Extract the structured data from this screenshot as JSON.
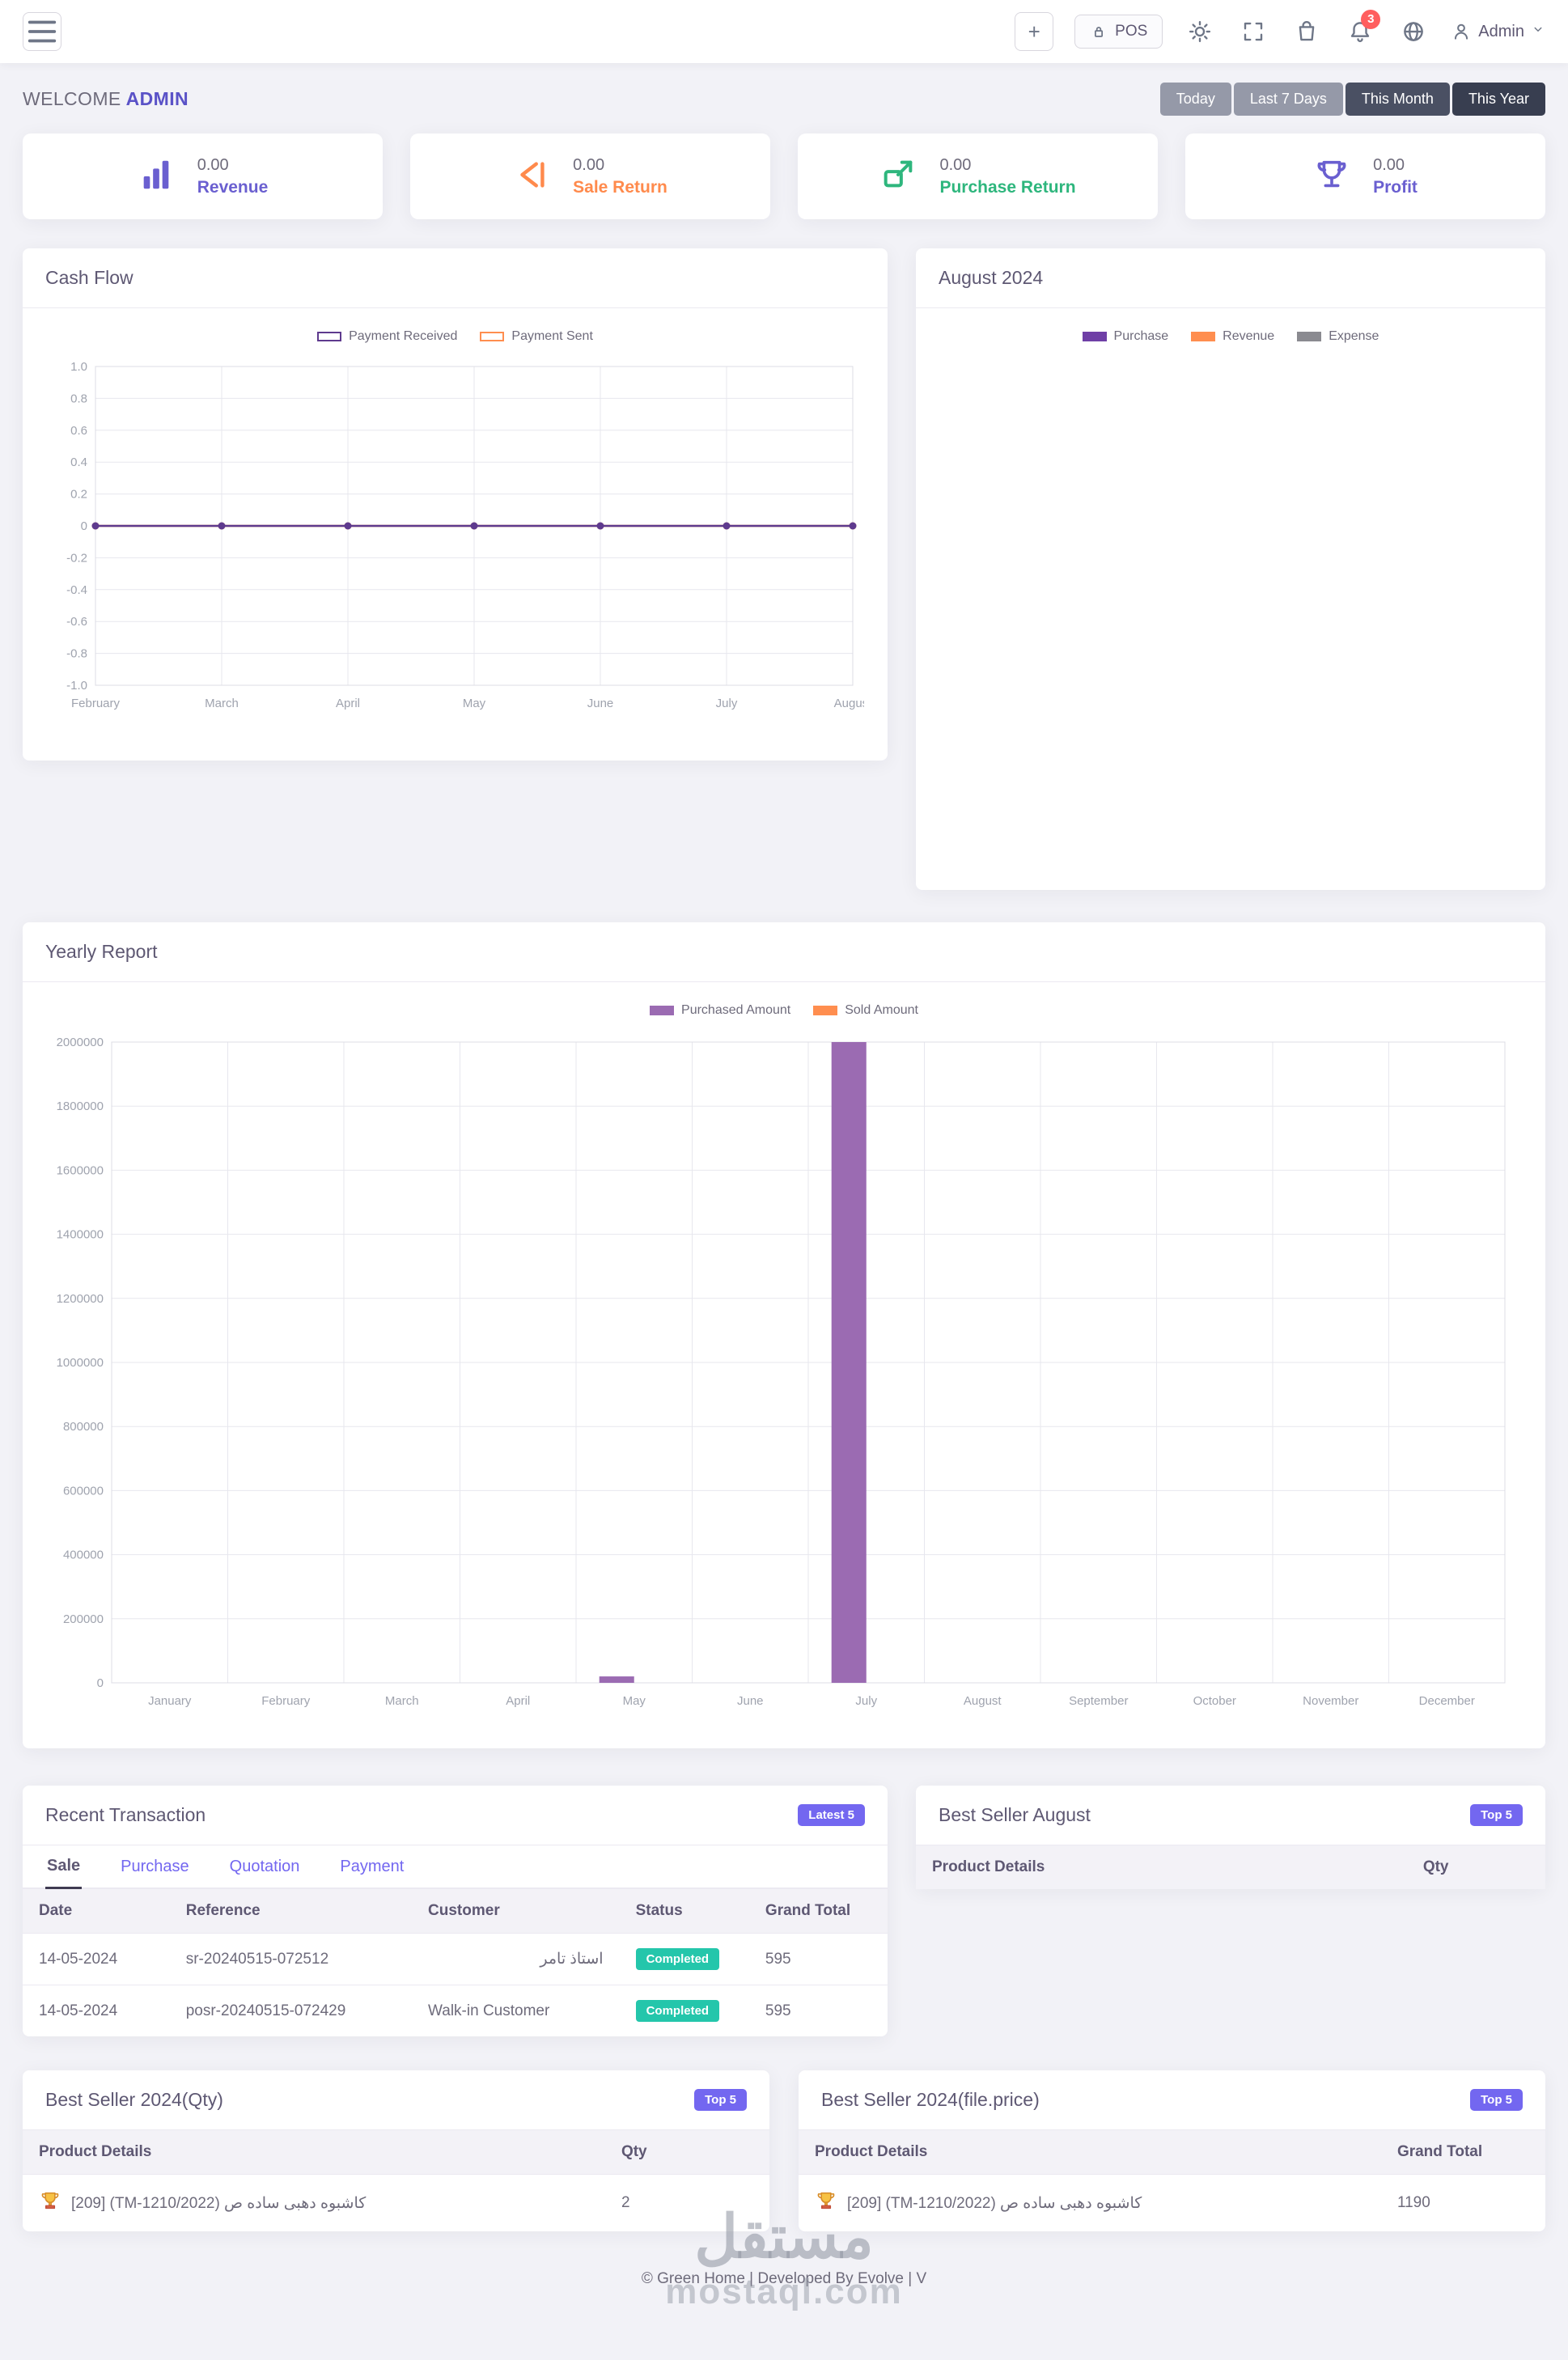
{
  "topbar": {
    "plus_label": "+",
    "pos_label": "POS",
    "notification_count": "3",
    "user_label": "Admin"
  },
  "welcome": {
    "prefix": "WELCOME",
    "name": "ADMIN"
  },
  "range_filters": [
    {
      "label": "Today",
      "active": false
    },
    {
      "label": "Last 7 Days",
      "active": false
    },
    {
      "label": "This Month",
      "active": true
    },
    {
      "label": "This Year",
      "active": false
    }
  ],
  "stats": [
    {
      "label": "Revenue",
      "value": "0.00",
      "color": "#6a5fd0"
    },
    {
      "label": "Sale Return",
      "value": "0.00",
      "color": "#ff8a4c"
    },
    {
      "label": "Purchase Return",
      "value": "0.00",
      "color": "#2eb67d"
    },
    {
      "label": "Profit",
      "value": "0.00",
      "color": "#6a5fd0"
    }
  ],
  "panels": {
    "cashflow": {
      "title": "Cash Flow"
    },
    "august": {
      "title": "August 2024"
    },
    "yearly": {
      "title": "Yearly Report"
    },
    "recent": {
      "title": "Recent Transaction",
      "badge": "Latest 5",
      "tabs": [
        "Sale",
        "Purchase",
        "Quotation",
        "Payment"
      ],
      "columns": [
        "Date",
        "Reference",
        "Customer",
        "Status",
        "Grand Total"
      ],
      "rows": [
        {
          "date": "14-05-2024",
          "reference": "sr-20240515-072512",
          "customer": "استاذ تامر",
          "status": "Completed",
          "total": "595"
        },
        {
          "date": "14-05-2024",
          "reference": "posr-20240515-072429",
          "customer": "Walk-in Customer",
          "status": "Completed",
          "total": "595"
        }
      ]
    },
    "best_august": {
      "title": "Best Seller August",
      "badge": "Top 5",
      "columns": [
        "Product Details",
        "Qty"
      ]
    },
    "best_qty": {
      "title": "Best Seller 2024(Qty)",
      "badge": "Top 5",
      "columns": [
        "Product Details",
        "Qty"
      ],
      "row": {
        "product": "كاشبوه دهبى ساده ص (TM-1210/2022) [209]",
        "value": "2"
      }
    },
    "best_price": {
      "title": "Best Seller 2024(file.price)",
      "badge": "Top 5",
      "columns": [
        "Product Details",
        "Grand Total"
      ],
      "row": {
        "product": "كاشبوه دهبى ساده ص (TM-1210/2022) [209]",
        "value": "1190"
      }
    }
  },
  "footer": {
    "text": "© Green Home | Developed By Evolve | V"
  },
  "watermark": {
    "line1": "مستقل",
    "line2": "mostaql.com"
  },
  "chart_data": [
    {
      "id": "cashflow",
      "type": "line",
      "title": "Cash Flow",
      "categories": [
        "February",
        "March",
        "April",
        "May",
        "June",
        "July",
        "August"
      ],
      "series": [
        {
          "name": "Payment Sent",
          "color": "#ff8e4f",
          "values": [
            0,
            0,
            0,
            0,
            0,
            0,
            0
          ]
        },
        {
          "name": "Payment Received",
          "color": "#5e3a8e",
          "values": [
            0,
            0,
            0,
            0,
            0,
            0,
            0
          ]
        }
      ],
      "ylim": [
        -1,
        1
      ],
      "ystep": 0.2,
      "tick_format": "decimal1",
      "legend_position": "top",
      "grid": true
    },
    {
      "id": "august-overview",
      "type": "bar",
      "title": "August 2024",
      "categories": [],
      "series": [
        {
          "name": "Purchase",
          "color": "#6f3fa6",
          "values": []
        },
        {
          "name": "Revenue",
          "color": "#ff8e4f",
          "values": []
        },
        {
          "name": "Expense",
          "color": "#8a8a90",
          "values": []
        }
      ],
      "legend_position": "top",
      "grid": false
    },
    {
      "id": "yearly",
      "type": "bar",
      "title": "Yearly Report",
      "categories": [
        "January",
        "February",
        "March",
        "April",
        "May",
        "June",
        "July",
        "August",
        "September",
        "October",
        "November",
        "December"
      ],
      "series": [
        {
          "name": "Purchased Amount",
          "color": "#9b6bb2",
          "values": [
            0,
            0,
            0,
            0,
            20000,
            0,
            2000000,
            0,
            0,
            0,
            0,
            0
          ]
        },
        {
          "name": "Sold Amount",
          "color": "#ff8e4f",
          "values": [
            0,
            0,
            0,
            0,
            0,
            0,
            0,
            0,
            0,
            0,
            0,
            0
          ]
        }
      ],
      "ylim": [
        0,
        2000000
      ],
      "ystep": 200000,
      "tick_format": "int",
      "legend_position": "top",
      "grid": true
    }
  ]
}
